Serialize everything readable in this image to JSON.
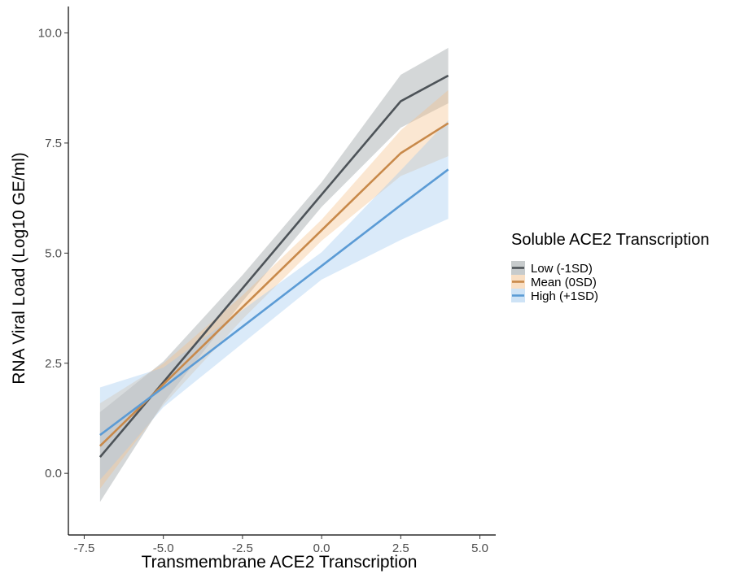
{
  "chart_data": {
    "type": "line",
    "xlabel": "Transmembrane ACE2 Transcription",
    "ylabel": "RNA Viral Load (Log10 GE/ml)",
    "xlim": [
      -8.0,
      5.5
    ],
    "ylim": [
      -1.4,
      10.6
    ],
    "xticks": [
      -7.5,
      -5.0,
      -2.5,
      0.0,
      2.5,
      5.0
    ],
    "xtick_labels": [
      "-7.5",
      "-5.0",
      "-2.5",
      "0.0",
      "2.5",
      "5.0"
    ],
    "yticks": [
      0.0,
      2.5,
      5.0,
      7.5,
      10.0
    ],
    "ytick_labels": [
      "0.0",
      "2.5",
      "5.0",
      "7.5",
      "10.0"
    ],
    "grid": false,
    "legend": {
      "title": "Soluble ACE2 Transcription",
      "position": "right"
    },
    "series": [
      {
        "name": "Low (-1SD)",
        "color": "#4d5358",
        "band_color": "#8f9799",
        "x": [
          -7.0,
          -5.0,
          -2.5,
          0.0,
          2.5,
          4.0
        ],
        "y": [
          0.37,
          2.07,
          4.2,
          6.33,
          8.45,
          9.03
        ],
        "ci_lower": [
          -0.65,
          1.6,
          3.9,
          6.05,
          7.85,
          8.4
        ],
        "ci_upper": [
          1.39,
          2.54,
          4.5,
          6.61,
          9.05,
          9.66
        ]
      },
      {
        "name": "Mean (0SD)",
        "color": "#c8894a",
        "band_color": "#f4c08a",
        "x": [
          -7.0,
          -5.0,
          -2.5,
          0.0,
          2.5,
          4.0
        ],
        "y": [
          0.62,
          2.02,
          3.77,
          5.52,
          7.27,
          7.95
        ],
        "ci_lower": [
          -0.35,
          1.55,
          3.5,
          5.28,
          6.75,
          7.2
        ],
        "ci_upper": [
          1.59,
          2.49,
          4.04,
          5.76,
          7.79,
          8.7
        ]
      },
      {
        "name": "High (+1SD)",
        "color": "#5b9bd5",
        "band_color": "#9ec7ee",
        "x": [
          -7.0,
          -5.0,
          -2.5,
          0.0,
          2.5,
          4.0
        ],
        "y": [
          0.87,
          1.95,
          3.33,
          4.71,
          6.09,
          6.9
        ],
        "ci_lower": [
          -0.15,
          1.5,
          2.95,
          4.4,
          5.3,
          5.78
        ],
        "ci_upper": [
          1.95,
          2.4,
          3.71,
          5.02,
          6.88,
          8.02
        ]
      }
    ]
  }
}
